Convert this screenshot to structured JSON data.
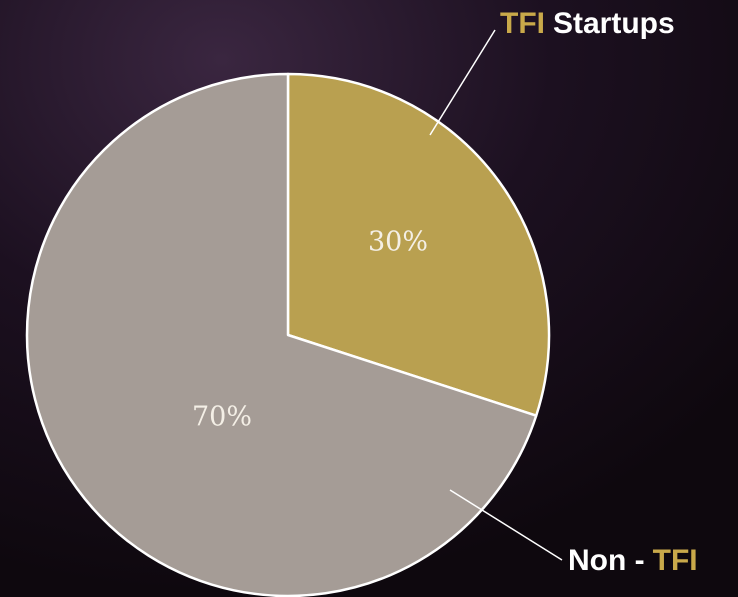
{
  "chart_data": {
    "type": "pie",
    "categories": [
      [
        {
          "text": "TFI",
          "color": "#c9a94a"
        },
        {
          "text": "Startups",
          "color": "#ffffff"
        }
      ],
      [
        {
          "text": "Non -",
          "color": "#ffffff"
        },
        {
          "text": "TFI",
          "color": "#c9a94a"
        }
      ]
    ],
    "values": [
      30,
      70
    ],
    "value_labels": [
      "30%",
      "70%"
    ],
    "colors": [
      "#b9a050",
      "#a59c96"
    ]
  }
}
